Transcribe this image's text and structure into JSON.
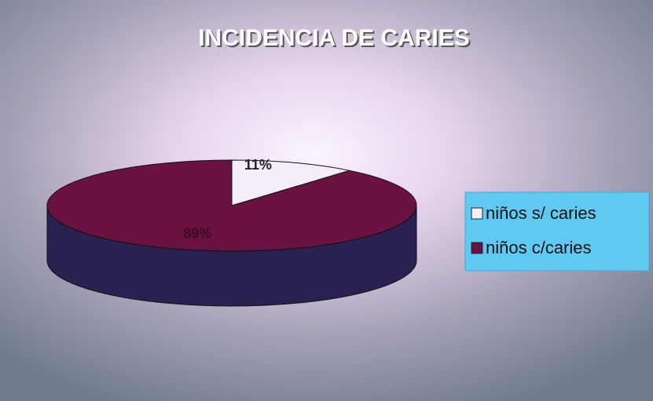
{
  "chart_data": {
    "type": "pie",
    "title": "INCIDENCIA DE CARIES",
    "categories": [
      "niños s/ caries",
      "niños c/caries"
    ],
    "values": [
      11,
      89
    ],
    "value_labels": [
      "11%",
      "89%"
    ],
    "colors": [
      "#f4eefa",
      "#6a1240"
    ],
    "legend": "right"
  }
}
